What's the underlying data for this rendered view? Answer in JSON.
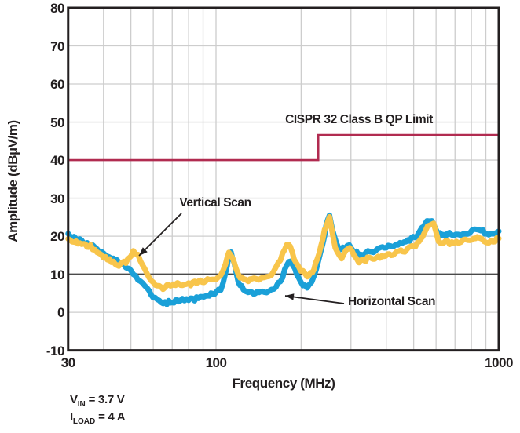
{
  "chart_data": {
    "type": "line",
    "title": "",
    "xlabel": "Frequency (MHz)",
    "ylabel": "Amplitude (dBµV/m)",
    "x_scale": "log",
    "xlim": [
      30,
      1000
    ],
    "ylim": [
      -10,
      80
    ],
    "x_ticks": [
      30,
      100,
      1000
    ],
    "x_minor_gridlines": [
      40,
      50,
      60,
      70,
      80,
      90,
      100,
      200,
      300,
      400,
      500,
      600,
      700,
      800,
      900
    ],
    "y_ticks": [
      80,
      70,
      60,
      50,
      40,
      30,
      20,
      10,
      0,
      -10
    ],
    "grid": true,
    "baseline": {
      "value": 10,
      "color": "#4a4a4a"
    },
    "colors": {
      "grid": "#cdcdcd",
      "axis": "#231f20",
      "limit": "#b12b50",
      "horizontal_scan": "#1aa0d8",
      "vertical_scan": "#f8c54b"
    },
    "limit_line": {
      "label": "CISPR 32 Class B QP Limit",
      "segments": [
        {
          "from_mhz": 30,
          "to_mhz": 230,
          "dbuv_m": 40
        },
        {
          "from_mhz": 230,
          "to_mhz": 1000,
          "dbuv_m": 46.6
        }
      ]
    },
    "series": [
      {
        "name": "Horizontal Scan",
        "color": "#1aa0d8",
        "points": [
          [
            30,
            20.3
          ],
          [
            32,
            19.3
          ],
          [
            34,
            18.5
          ],
          [
            36,
            17.6
          ],
          [
            38,
            16.6
          ],
          [
            40,
            15.4
          ],
          [
            42,
            14.3
          ],
          [
            44,
            13.6
          ],
          [
            46,
            12.9
          ],
          [
            48,
            11.9
          ],
          [
            50,
            10.6
          ],
          [
            52,
            9.4
          ],
          [
            54,
            8.2
          ],
          [
            56,
            6.8
          ],
          [
            58,
            5.3
          ],
          [
            60,
            4.0
          ],
          [
            62,
            3.0
          ],
          [
            64,
            2.5
          ],
          [
            66,
            2.4
          ],
          [
            68,
            2.6
          ],
          [
            70,
            2.8
          ],
          [
            73,
            3.1
          ],
          [
            76,
            3.3
          ],
          [
            80,
            3.2
          ],
          [
            84,
            3.5
          ],
          [
            88,
            3.9
          ],
          [
            92,
            4.4
          ],
          [
            96,
            4.9
          ],
          [
            100,
            5.2
          ],
          [
            104,
            6.3
          ],
          [
            108,
            10.0
          ],
          [
            111,
            15.0
          ],
          [
            113,
            15.8
          ],
          [
            116,
            12.5
          ],
          [
            120,
            7.8
          ],
          [
            125,
            6.3
          ],
          [
            130,
            5.6
          ],
          [
            136,
            5.2
          ],
          [
            142,
            5.0
          ],
          [
            148,
            5.2
          ],
          [
            154,
            5.5
          ],
          [
            160,
            6.2
          ],
          [
            166,
            7.5
          ],
          [
            172,
            9.5
          ],
          [
            178,
            12.2
          ],
          [
            184,
            13.8
          ],
          [
            190,
            11.5
          ],
          [
            196,
            8.8
          ],
          [
            203,
            7.3
          ],
          [
            210,
            6.8
          ],
          [
            218,
            8.0
          ],
          [
            226,
            11.0
          ],
          [
            234,
            15.5
          ],
          [
            242,
            20.5
          ],
          [
            248,
            24.2
          ],
          [
            252,
            25.5
          ],
          [
            258,
            21.5
          ],
          [
            266,
            18.3
          ],
          [
            276,
            16.4
          ],
          [
            286,
            17.0
          ],
          [
            296,
            18.0
          ],
          [
            308,
            16.0
          ],
          [
            320,
            15.2
          ],
          [
            334,
            15.5
          ],
          [
            350,
            15.9
          ],
          [
            366,
            16.1
          ],
          [
            382,
            16.6
          ],
          [
            400,
            17.0
          ],
          [
            420,
            17.4
          ],
          [
            440,
            17.9
          ],
          [
            462,
            18.4
          ],
          [
            484,
            19.0
          ],
          [
            505,
            19.8
          ],
          [
            528,
            21.2
          ],
          [
            550,
            23.3
          ],
          [
            565,
            24.4
          ],
          [
            580,
            23.8
          ],
          [
            592,
            22.5
          ],
          [
            605,
            21.3
          ],
          [
            620,
            20.6
          ],
          [
            638,
            20.2
          ],
          [
            658,
            20.6
          ],
          [
            680,
            20.3
          ],
          [
            705,
            20.2
          ],
          [
            732,
            20.5
          ],
          [
            760,
            20.7
          ],
          [
            790,
            21.0
          ],
          [
            820,
            21.5
          ],
          [
            850,
            21.9
          ],
          [
            878,
            21.2
          ],
          [
            905,
            20.6
          ],
          [
            938,
            20.8
          ],
          [
            968,
            21.0
          ],
          [
            1000,
            21.3
          ]
        ]
      },
      {
        "name": "Vertical Scan",
        "color": "#f8c54b",
        "points": [
          [
            30,
            19.3
          ],
          [
            32,
            18.4
          ],
          [
            34,
            17.6
          ],
          [
            36,
            17.3
          ],
          [
            38,
            16.0
          ],
          [
            40,
            14.7
          ],
          [
            42,
            13.6
          ],
          [
            44,
            12.9
          ],
          [
            46,
            12.4
          ],
          [
            48,
            13.2
          ],
          [
            50,
            14.8
          ],
          [
            51,
            15.8
          ],
          [
            53,
            14.8
          ],
          [
            55,
            12.6
          ],
          [
            57,
            10.2
          ],
          [
            59,
            8.0
          ],
          [
            61,
            7.0
          ],
          [
            63,
            6.6
          ],
          [
            65,
            6.5
          ],
          [
            67,
            6.8
          ],
          [
            70,
            7.0
          ],
          [
            73,
            7.3
          ],
          [
            76,
            7.5
          ],
          [
            80,
            7.3
          ],
          [
            84,
            7.7
          ],
          [
            88,
            8.1
          ],
          [
            92,
            8.4
          ],
          [
            96,
            8.7
          ],
          [
            100,
            9.1
          ],
          [
            104,
            10.0
          ],
          [
            108,
            12.8
          ],
          [
            111,
            15.5
          ],
          [
            113,
            15.2
          ],
          [
            116,
            12.8
          ],
          [
            120,
            9.8
          ],
          [
            125,
            8.6
          ],
          [
            130,
            8.3
          ],
          [
            136,
            8.6
          ],
          [
            142,
            8.4
          ],
          [
            148,
            8.8
          ],
          [
            154,
            9.4
          ],
          [
            160,
            10.6
          ],
          [
            166,
            12.6
          ],
          [
            172,
            15.6
          ],
          [
            178,
            18.2
          ],
          [
            183,
            17.0
          ],
          [
            189,
            14.2
          ],
          [
            196,
            12.0
          ],
          [
            203,
            10.6
          ],
          [
            210,
            9.2
          ],
          [
            216,
            10.0
          ],
          [
            222,
            11.6
          ],
          [
            228,
            13.8
          ],
          [
            235,
            17.3
          ],
          [
            242,
            21.3
          ],
          [
            248,
            24.0
          ],
          [
            252,
            25.0
          ],
          [
            258,
            20.5
          ],
          [
            264,
            17.3
          ],
          [
            272,
            15.0
          ],
          [
            278,
            14.4
          ],
          [
            288,
            16.2
          ],
          [
            297,
            17.3
          ],
          [
            308,
            14.6
          ],
          [
            320,
            13.5
          ],
          [
            334,
            13.8
          ],
          [
            348,
            14.1
          ],
          [
            364,
            13.9
          ],
          [
            380,
            14.4
          ],
          [
            398,
            14.9
          ],
          [
            416,
            15.2
          ],
          [
            436,
            15.7
          ],
          [
            458,
            16.1
          ],
          [
            480,
            16.6
          ],
          [
            500,
            17.2
          ],
          [
            522,
            18.6
          ],
          [
            545,
            21.0
          ],
          [
            568,
            22.9
          ],
          [
            588,
            23.4
          ],
          [
            600,
            21.0
          ],
          [
            612,
            18.9
          ],
          [
            628,
            18.3
          ],
          [
            648,
            18.6
          ],
          [
            670,
            18.2
          ],
          [
            695,
            18.5
          ],
          [
            720,
            18.1
          ],
          [
            748,
            18.6
          ],
          [
            775,
            18.9
          ],
          [
            805,
            19.1
          ],
          [
            840,
            19.4
          ],
          [
            872,
            18.8
          ],
          [
            905,
            18.5
          ],
          [
            940,
            18.8
          ],
          [
            970,
            19.0
          ],
          [
            1000,
            19.4
          ]
        ]
      }
    ],
    "annotations": [
      {
        "text": "Vertical Scan",
        "points_to": "vertical_scan peak near 51 MHz"
      },
      {
        "text": "Horizontal Scan",
        "points_to": "horizontal_scan trough near 170 MHz"
      }
    ],
    "conditions": [
      {
        "symbol": "V",
        "subscript": "IN",
        "value": " = 3.7 V"
      },
      {
        "symbol": "I",
        "subscript": "LOAD",
        "value": " = 4 A"
      }
    ]
  },
  "labels": {
    "cispr_limit": "CISPR 32 Class B QP Limit",
    "vertical_scan": "Vertical Scan",
    "horizontal_scan": "Horizontal Scan",
    "x_axis": "Frequency (MHz)",
    "y_axis": "Amplitude (dBµV/m)"
  }
}
